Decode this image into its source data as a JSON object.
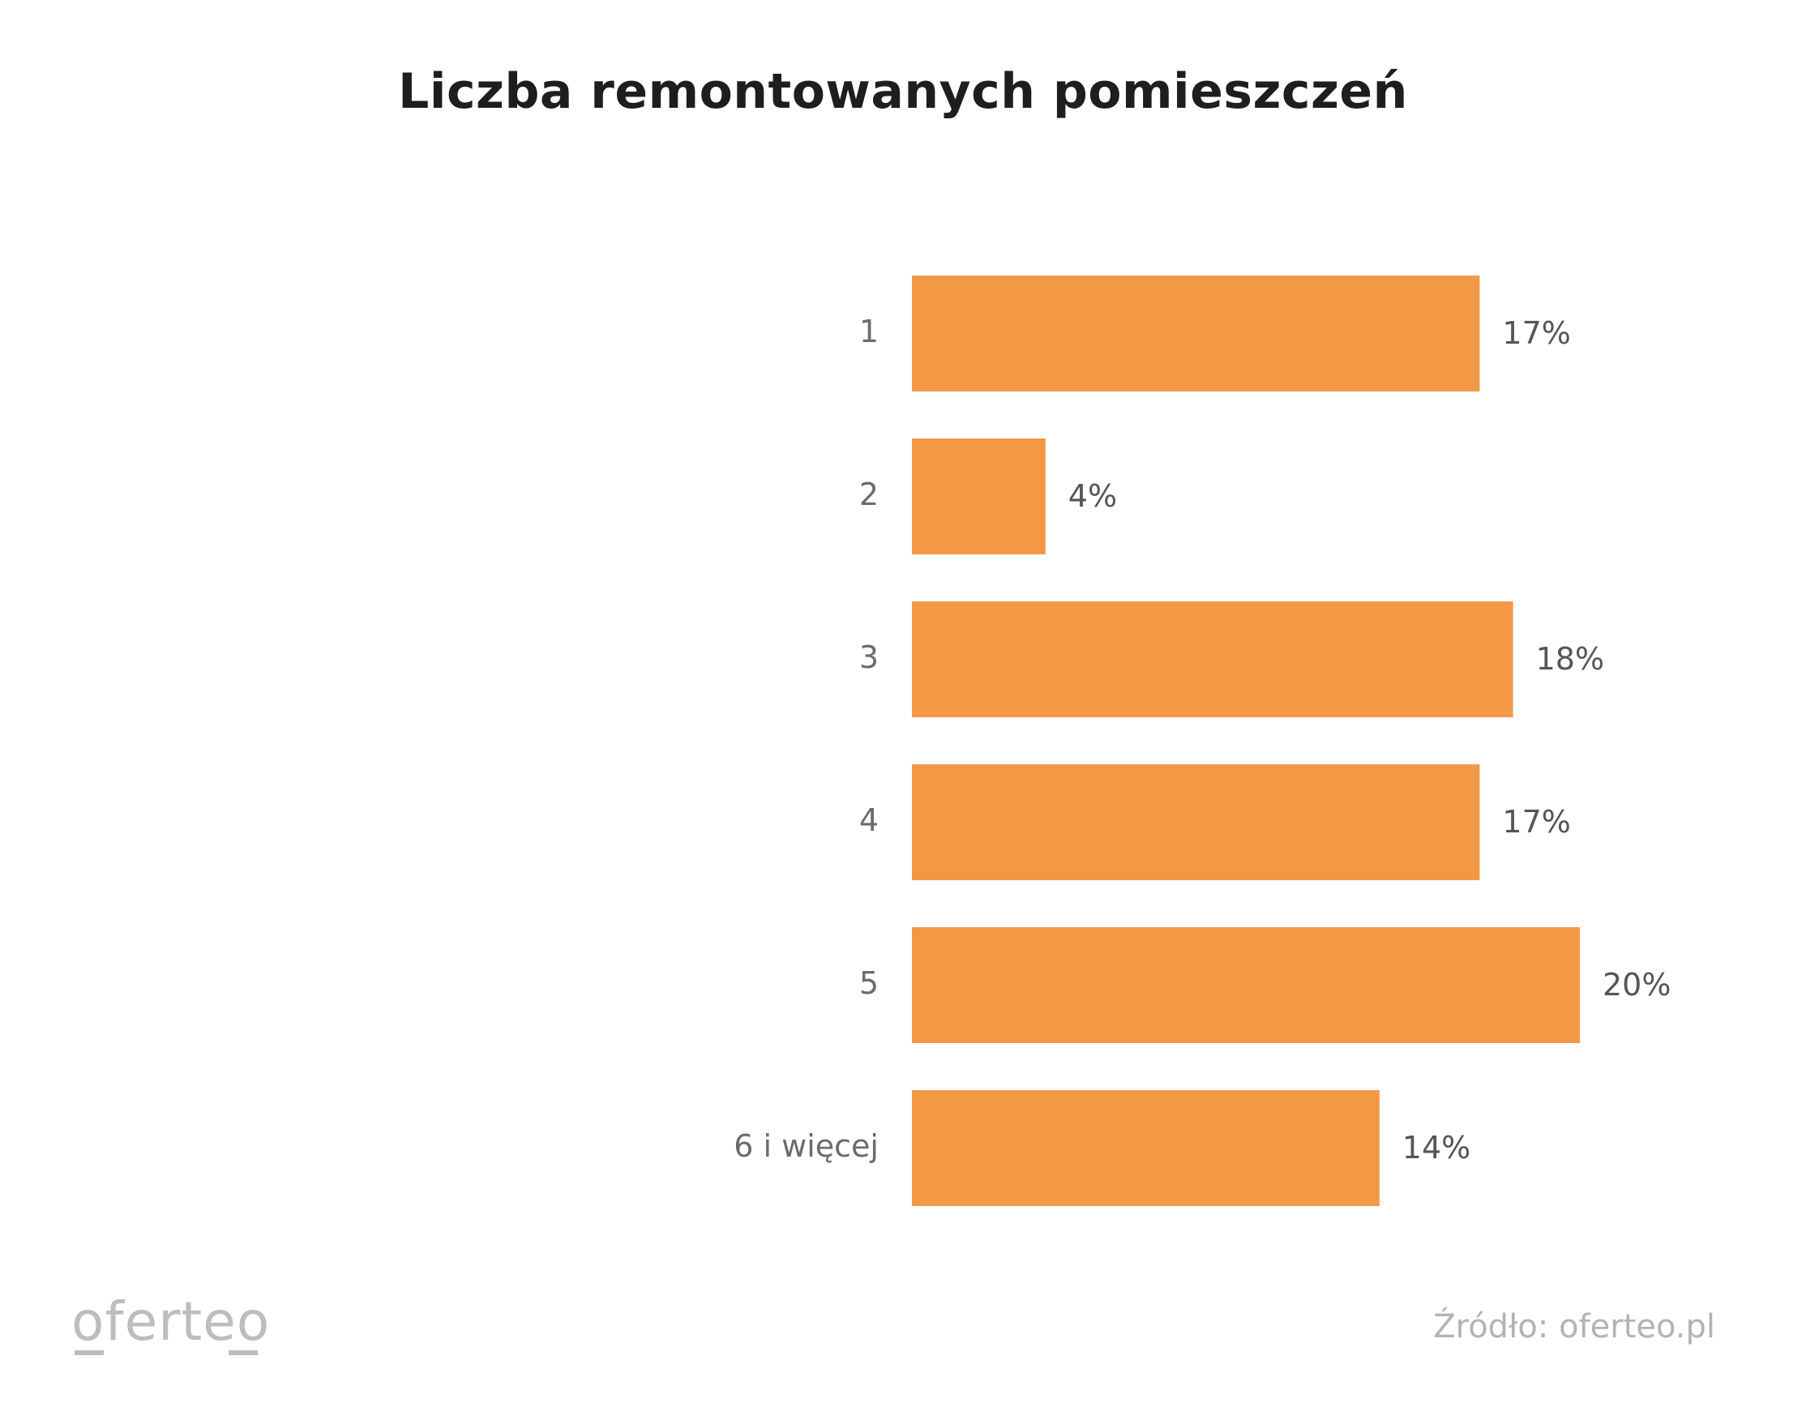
{
  "chart_data": {
    "type": "bar",
    "orientation": "horizontal",
    "title": "Liczba remontowanych pomieszczeń",
    "categories": [
      "1",
      "2",
      "3",
      "4",
      "5",
      "6 i więcej"
    ],
    "values": [
      17,
      4,
      18,
      17,
      20,
      14
    ],
    "value_labels": [
      "17%",
      "4%",
      "18%",
      "17%",
      "20%",
      "14%"
    ],
    "unit": "%",
    "xlim": [
      0,
      20
    ],
    "grid": false,
    "legend": "none",
    "bar_color": "#f39844"
  },
  "branding": {
    "logo_text": "oferteo",
    "source": "Źródło: oferteo.pl"
  }
}
